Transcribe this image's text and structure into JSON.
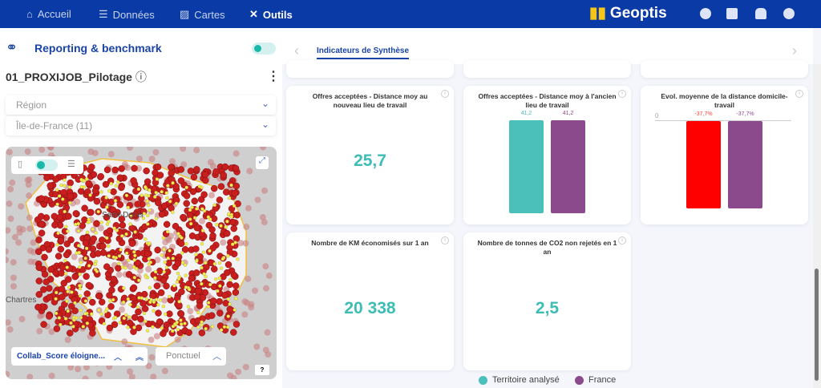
{
  "nav": {
    "items": [
      {
        "label": "Accueil",
        "icon": "home-icon"
      },
      {
        "label": "Données",
        "icon": "database-icon"
      },
      {
        "label": "Cartes",
        "icon": "map-icon"
      },
      {
        "label": "Outils",
        "icon": "tools-icon",
        "active": true
      }
    ],
    "brand": "Geoptis",
    "right_icons": [
      "user-icon",
      "checklist-icon",
      "bell-icon",
      "help-icon"
    ]
  },
  "left": {
    "title": "Reporting & benchmark",
    "project": "01_PROXIJOB_Pilotage",
    "selects": [
      {
        "value": "Région"
      },
      {
        "value": "Île-de-France (11)"
      }
    ],
    "map": {
      "labels": [
        "Saint-Denis",
        "Chartres"
      ],
      "layer_select": "Collab_Score éloigne...",
      "mode_select": "Ponctuel",
      "help": "?"
    }
  },
  "tabs": {
    "active": "Indicateurs de Synthèse"
  },
  "cards": [
    {
      "title": "Offres acceptées - Distance moy au nouveau lieu de travail",
      "value": "25,7"
    },
    {
      "title": "Offres acceptées - Distance moy à l'ancien lieu de travail",
      "chart_data": {
        "type": "bar",
        "values": [
          41.2,
          41.2
        ],
        "labels": [
          "41,2",
          "41,2"
        ]
      }
    },
    {
      "title": "Evol. moyenne de la distance domicile-travail",
      "chart_data": {
        "type": "bar",
        "values": [
          -37.7,
          -37.7
        ],
        "labels": [
          "-37,7%",
          "-37,7%"
        ],
        "axis_label": "0"
      }
    },
    {
      "title": "Nombre de KM économisés sur 1 an",
      "value": "20 338"
    },
    {
      "title": "Nombre de tonnes de CO2 non rejetés en 1 an",
      "value": "2,5"
    }
  ],
  "legend": [
    {
      "label": "Territoire analysé",
      "color": "#4bbfba"
    },
    {
      "label": "France",
      "color": "#8b4a8c"
    }
  ],
  "colors": {
    "nav": "#0a3aa5",
    "teal": "#4bbfba",
    "purple": "#8b4a8c",
    "red": "#ff0000"
  }
}
